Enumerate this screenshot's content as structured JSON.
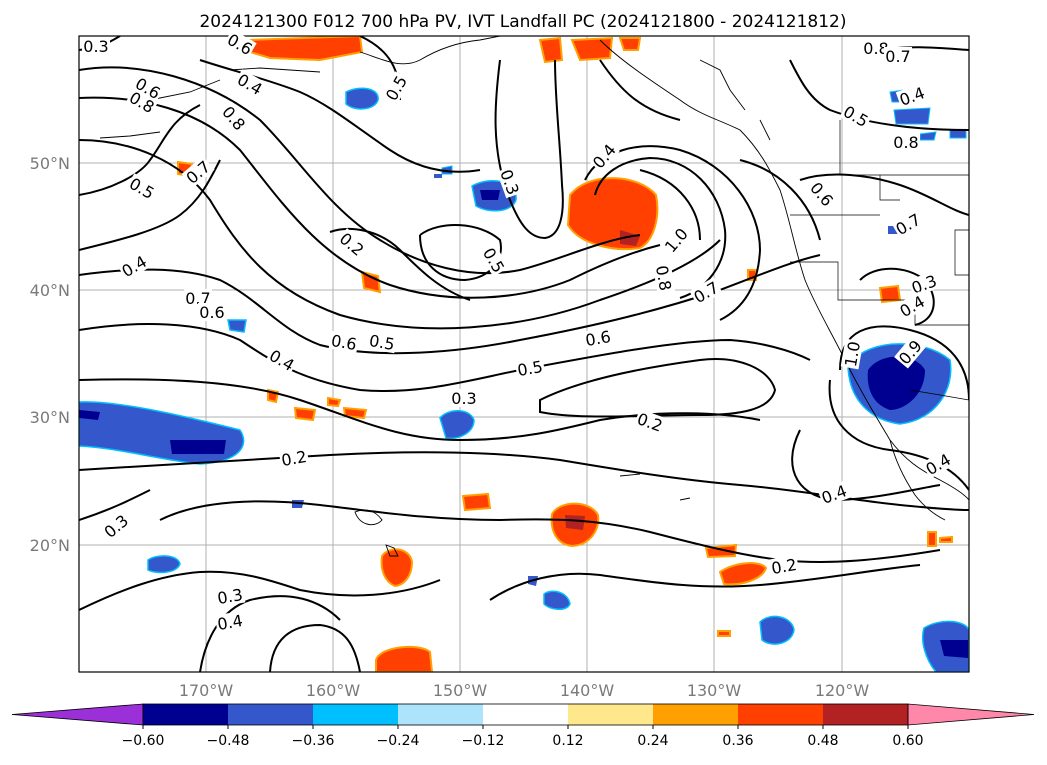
{
  "title": "2024121300 F012 700 hPa PV, IVT Landfall PC (2024121800 - 2024121812)",
  "lat_labels": [
    "50°N",
    "40°N",
    "30°N",
    "20°N"
  ],
  "lon_labels": [
    "170°W",
    "160°W",
    "150°W",
    "140°W",
    "130°W",
    "120°W"
  ],
  "colorbar": {
    "colors": [
      "#9b30d9",
      "#000090",
      "#3458cc",
      "#00bfff",
      "#ade3fb",
      "#ffffff",
      "#ffe88c",
      "#ffa000",
      "#ff4000",
      "#b22222",
      "#ff88aa"
    ],
    "ticks": [
      "−0.60",
      "−0.48",
      "−0.36",
      "−0.24",
      "−0.12",
      "0.12",
      "0.24",
      "0.36",
      "0.48",
      "0.60"
    ]
  },
  "contour_labels": [
    "0.3",
    "0.6",
    "0.6",
    "0.8",
    "0.4",
    "0.8",
    "0.5",
    "0.7",
    "0.5",
    "0.4",
    "0.2",
    "0.7",
    "0.6",
    "0.6",
    "0.5",
    "0.4",
    "0.5",
    "0.3",
    "0.5",
    "0.6",
    "0.4",
    "1.0",
    "0.8",
    "0.7",
    "0.3",
    "0.2",
    "0.2",
    "0.3",
    "0.3",
    "0.4",
    "0.4",
    "0.2",
    "0.8",
    "0.7",
    "0.4",
    "0.5",
    "0.8",
    "0.6",
    "0.7",
    "0.3",
    "0.4",
    "1.0",
    "0.9",
    "0.4"
  ]
}
